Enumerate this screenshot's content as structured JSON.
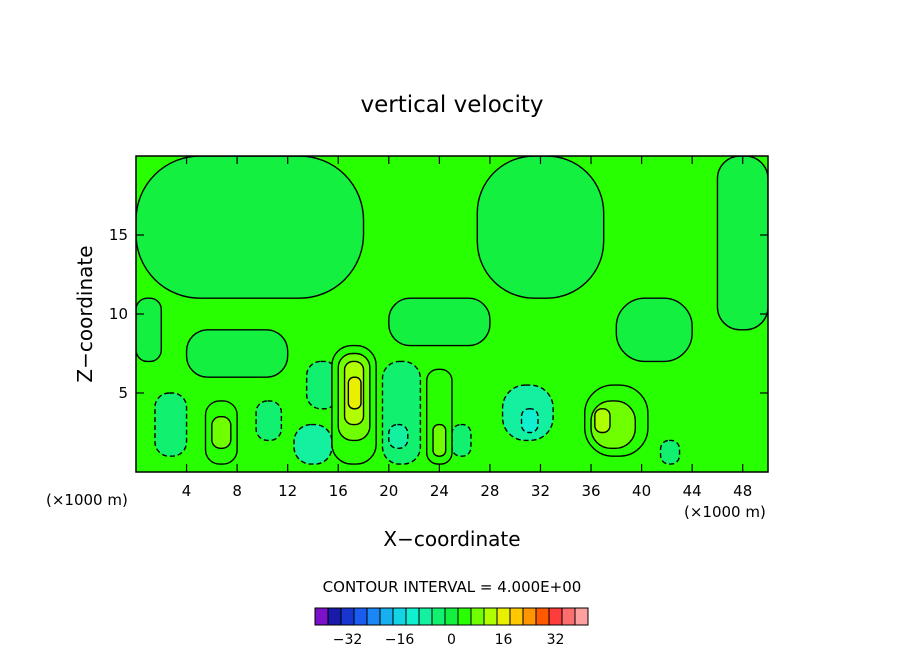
{
  "chart_data": {
    "type": "heatmap",
    "title": "vertical velocity",
    "xlabel": "X−coordinate",
    "ylabel": "Z−coordinate",
    "x_units": "(×1000 m)",
    "x_units_secondary": "(×1000 m)",
    "xlim": [
      0,
      50
    ],
    "ylim": [
      0,
      20
    ],
    "x_ticks": [
      4,
      8,
      12,
      16,
      20,
      24,
      28,
      32,
      36,
      40,
      44,
      48
    ],
    "x_tick_labels": [
      "4",
      "8",
      "12",
      "16",
      "20",
      "24",
      "28",
      "32",
      "36",
      "40",
      "44",
      "48"
    ],
    "y_ticks": [
      5,
      10,
      15
    ],
    "y_tick_labels": [
      "5",
      "10",
      "15"
    ],
    "contour_interval_text": "CONTOUR INTERVAL = 4.000E+00",
    "contour_interval": 4,
    "background_level": 0,
    "colorbar": {
      "colors": [
        "#7a10c8",
        "#1a1aa8",
        "#1836cf",
        "#1a5cf0",
        "#1b86f5",
        "#16b0ee",
        "#12d4e4",
        "#10f0d0",
        "#12f0a0",
        "#12f070",
        "#14f040",
        "#28ff00",
        "#70ff00",
        "#b0ff00",
        "#e8f000",
        "#ffc800",
        "#ff9600",
        "#ff5a00",
        "#ff3c3c",
        "#ff6e6e",
        "#ffa0a0"
      ],
      "tick_values": [
        -32,
        -16,
        0,
        16,
        32
      ],
      "tick_labels": [
        "−32",
        "−16",
        "0",
        "16",
        "32"
      ]
    },
    "cells": [
      {
        "x0": 0,
        "x1": 18,
        "y0": 11,
        "y1": 20,
        "value": 0
      },
      {
        "x0": 27,
        "x1": 37,
        "y0": 11,
        "y1": 20,
        "value": 0
      },
      {
        "x0": 0,
        "x1": 2,
        "y0": 7,
        "y1": 11,
        "value": 0
      },
      {
        "x0": 4,
        "x1": 12,
        "y0": 6,
        "y1": 9,
        "value": 0
      },
      {
        "x0": 20,
        "x1": 28,
        "y0": 8,
        "y1": 11,
        "value": 0
      },
      {
        "x0": 38,
        "x1": 44,
        "y0": 7,
        "y1": 11,
        "value": 0
      },
      {
        "x0": 46,
        "x1": 50,
        "y0": 9,
        "y1": 20,
        "value": 0
      },
      {
        "x0": 1.5,
        "x1": 4,
        "y0": 1,
        "y1": 5,
        "value": -4
      },
      {
        "x0": 9.5,
        "x1": 11.5,
        "y0": 2,
        "y1": 4.5,
        "value": -4
      },
      {
        "x0": 12.5,
        "x1": 15.5,
        "y0": 0.5,
        "y1": 3,
        "value": -8
      },
      {
        "x0": 13.5,
        "x1": 16,
        "y0": 4,
        "y1": 7,
        "value": -4
      },
      {
        "x0": 19.5,
        "x1": 22.5,
        "y0": 0.5,
        "y1": 7,
        "value": -4
      },
      {
        "x0": 20,
        "x1": 21.5,
        "y0": 1.5,
        "y1": 3,
        "value": -8
      },
      {
        "x0": 25,
        "x1": 26.5,
        "y0": 1,
        "y1": 3,
        "value": -4
      },
      {
        "x0": 29,
        "x1": 33,
        "y0": 2,
        "y1": 5.5,
        "value": -8
      },
      {
        "x0": 30.5,
        "x1": 31.8,
        "y0": 2.5,
        "y1": 4,
        "value": -12
      },
      {
        "x0": 41.5,
        "x1": 43,
        "y0": 0.5,
        "y1": 2,
        "value": -4
      },
      {
        "x0": 5.5,
        "x1": 8,
        "y0": 0.5,
        "y1": 4.5,
        "value": 4
      },
      {
        "x0": 6,
        "x1": 7.5,
        "y0": 1.5,
        "y1": 3.5,
        "value": 8
      },
      {
        "x0": 15.5,
        "x1": 19,
        "y0": 0.5,
        "y1": 8,
        "value": 4
      },
      {
        "x0": 16,
        "x1": 18.5,
        "y0": 2,
        "y1": 7.5,
        "value": 8
      },
      {
        "x0": 16.5,
        "x1": 18,
        "y0": 3,
        "y1": 7,
        "value": 12
      },
      {
        "x0": 16.8,
        "x1": 17.8,
        "y0": 4,
        "y1": 6,
        "value": 16
      },
      {
        "x0": 23,
        "x1": 25,
        "y0": 0.5,
        "y1": 6.5,
        "value": 4
      },
      {
        "x0": 23.5,
        "x1": 24.5,
        "y0": 1,
        "y1": 3,
        "value": 8
      },
      {
        "x0": 35.5,
        "x1": 40.5,
        "y0": 1,
        "y1": 5.5,
        "value": 4
      },
      {
        "x0": 36,
        "x1": 39.5,
        "y0": 1.5,
        "y1": 4.5,
        "value": 8
      },
      {
        "x0": 36.3,
        "x1": 37.5,
        "y0": 2.5,
        "y1": 4,
        "value": 12
      }
    ]
  }
}
